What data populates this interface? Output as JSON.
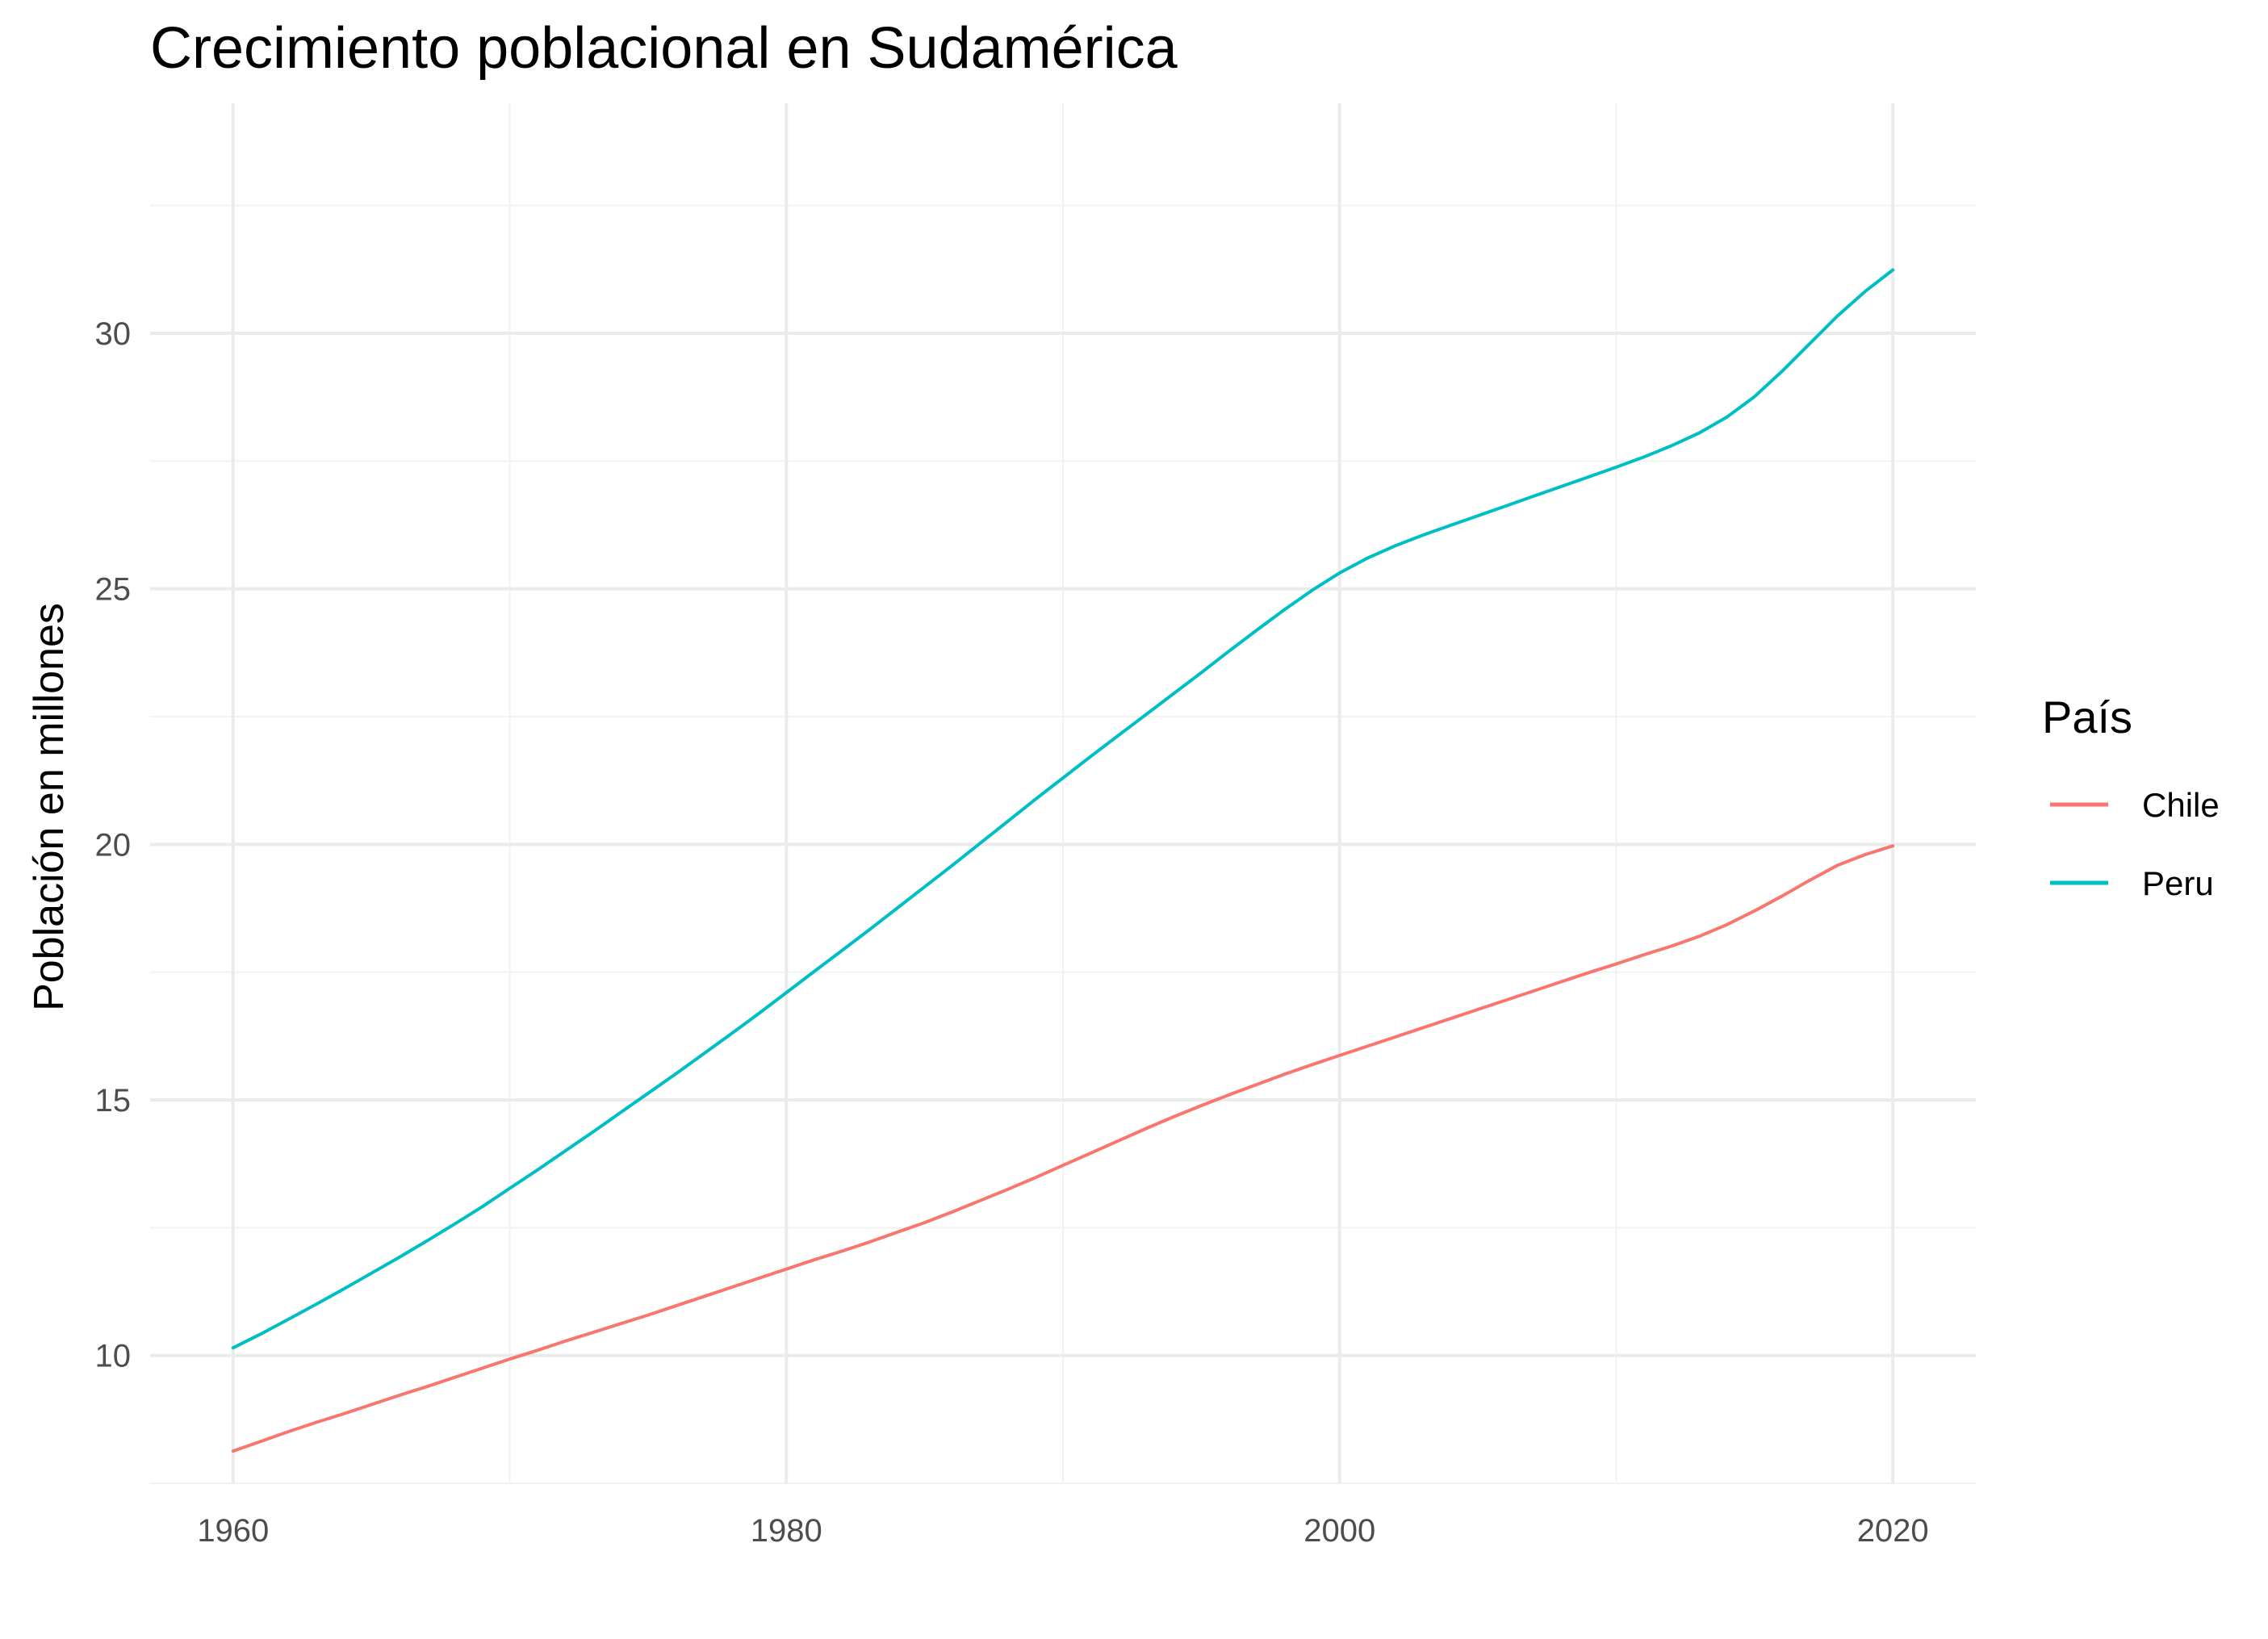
{
  "chart_data": {
    "type": "line",
    "title": "Crecimiento poblacional en Sudamérica",
    "xlabel": "",
    "ylabel": "Población en millones",
    "xlim": [
      1957,
      2023
    ],
    "ylim": [
      7.5,
      34.5
    ],
    "x_ticks": [
      1960,
      1980,
      2000,
      2020
    ],
    "y_ticks": [
      10,
      15,
      20,
      25,
      30
    ],
    "grid": true,
    "legend": {
      "title": "País",
      "position": "right"
    },
    "series": [
      {
        "name": "Chile",
        "color": "#F8766D",
        "x": [
          1960,
          1961,
          1962,
          1963,
          1964,
          1965,
          1966,
          1967,
          1968,
          1969,
          1970,
          1971,
          1972,
          1973,
          1974,
          1975,
          1976,
          1977,
          1978,
          1979,
          1980,
          1981,
          1982,
          1983,
          1984,
          1985,
          1986,
          1987,
          1988,
          1989,
          1990,
          1991,
          1992,
          1993,
          1994,
          1995,
          1996,
          1997,
          1998,
          1999,
          2000,
          2001,
          2002,
          2003,
          2004,
          2005,
          2006,
          2007,
          2008,
          2009,
          2010,
          2011,
          2012,
          2013,
          2014,
          2015,
          2016,
          2017,
          2018,
          2019,
          2020
        ],
        "values": [
          8.13,
          8.32,
          8.51,
          8.69,
          8.86,
          9.04,
          9.22,
          9.39,
          9.57,
          9.75,
          9.93,
          10.1,
          10.28,
          10.45,
          10.62,
          10.79,
          10.97,
          11.15,
          11.33,
          11.51,
          11.69,
          11.87,
          12.04,
          12.22,
          12.41,
          12.6,
          12.81,
          13.03,
          13.25,
          13.48,
          13.72,
          13.96,
          14.2,
          14.44,
          14.67,
          14.89,
          15.1,
          15.3,
          15.5,
          15.69,
          15.87,
          16.05,
          16.23,
          16.41,
          16.59,
          16.77,
          16.95,
          17.13,
          17.31,
          17.49,
          17.66,
          17.84,
          18.01,
          18.2,
          18.43,
          18.7,
          18.99,
          19.3,
          19.59,
          19.8,
          19.97
        ]
      },
      {
        "name": "Peru",
        "color": "#00BFC4",
        "x": [
          1960,
          1961,
          1962,
          1963,
          1964,
          1965,
          1966,
          1967,
          1968,
          1969,
          1970,
          1971,
          1972,
          1973,
          1974,
          1975,
          1976,
          1977,
          1978,
          1979,
          1980,
          1981,
          1982,
          1983,
          1984,
          1985,
          1986,
          1987,
          1988,
          1989,
          1990,
          1991,
          1992,
          1993,
          1994,
          1995,
          1996,
          1997,
          1998,
          1999,
          2000,
          2001,
          2002,
          2003,
          2004,
          2005,
          2006,
          2007,
          2008,
          2009,
          2010,
          2011,
          2012,
          2013,
          2014,
          2015,
          2016,
          2017,
          2018,
          2019,
          2020
        ],
        "values": [
          10.15,
          10.42,
          10.71,
          11.0,
          11.3,
          11.61,
          11.92,
          12.24,
          12.57,
          12.91,
          13.27,
          13.63,
          14.0,
          14.37,
          14.75,
          15.13,
          15.51,
          15.9,
          16.29,
          16.69,
          17.1,
          17.51,
          17.92,
          18.33,
          18.75,
          19.17,
          19.59,
          20.02,
          20.45,
          20.88,
          21.3,
          21.72,
          22.13,
          22.54,
          22.95,
          23.36,
          23.78,
          24.19,
          24.59,
          24.97,
          25.31,
          25.6,
          25.84,
          26.05,
          26.24,
          26.43,
          26.62,
          26.81,
          27.0,
          27.19,
          27.38,
          27.58,
          27.8,
          28.05,
          28.36,
          28.76,
          29.26,
          29.8,
          30.34,
          30.82,
          31.24
        ]
      }
    ]
  }
}
